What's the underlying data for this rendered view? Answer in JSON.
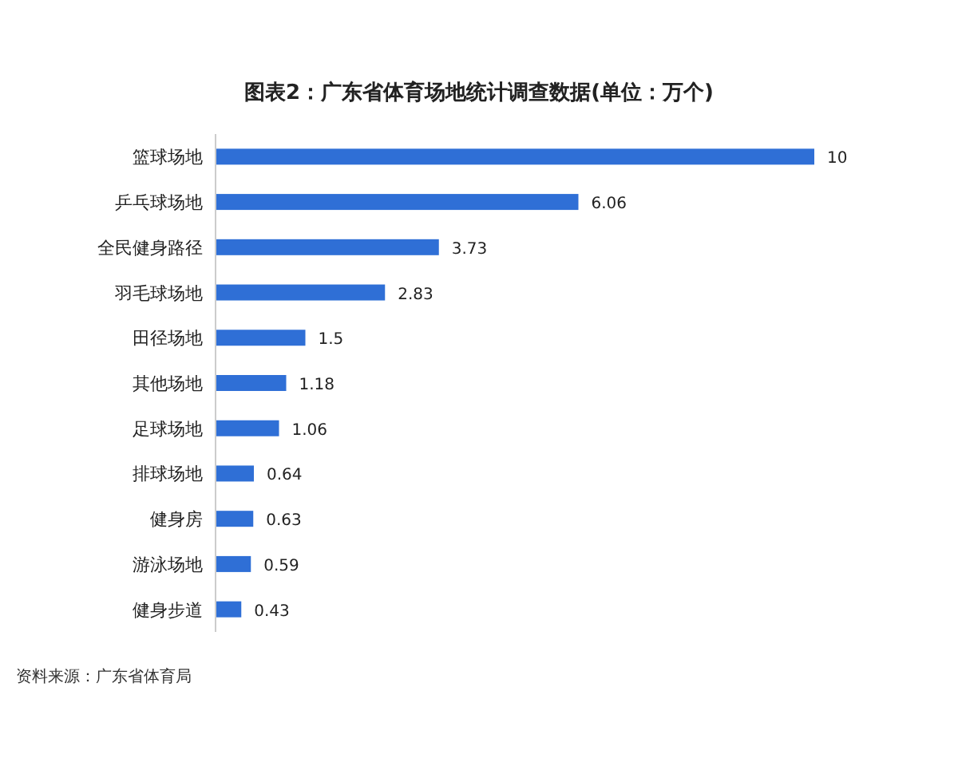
{
  "chart_data": {
    "type": "bar",
    "orientation": "horizontal",
    "title": "图表2：广东省体育场地统计调查数据(单位：万个)",
    "categories": [
      "篮球场地",
      "乒乓球场地",
      "全民健身路径",
      "羽毛球场地",
      "田径场地",
      "其他场地",
      "足球场地",
      "排球场地",
      "健身房",
      "游泳场地",
      "健身步道"
    ],
    "values": [
      10,
      6.06,
      3.73,
      2.83,
      1.5,
      1.18,
      1.06,
      0.64,
      0.63,
      0.59,
      0.43
    ],
    "color": "#2f6fd6",
    "data_labels": true,
    "annotations": [
      "资料来源：广东省体育局"
    ]
  }
}
